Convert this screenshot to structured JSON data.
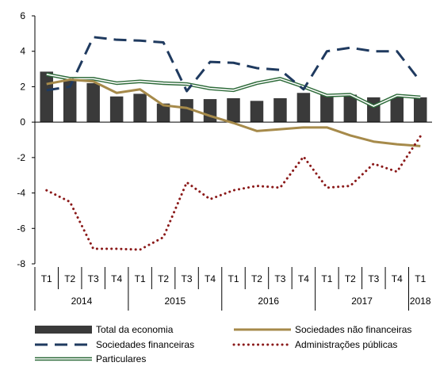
{
  "chart_data": {
    "type": "bar",
    "categories": [
      "T1",
      "T2",
      "T3",
      "T4",
      "T1",
      "T2",
      "T3",
      "T4",
      "T1",
      "T2",
      "T3",
      "T4",
      "T1",
      "T2",
      "T3",
      "T4",
      "T1"
    ],
    "year_groups": [
      {
        "label": "2014",
        "count": 4
      },
      {
        "label": "2015",
        "count": 4
      },
      {
        "label": "2016",
        "count": 4
      },
      {
        "label": "2017",
        "count": 4
      },
      {
        "label": "2018",
        "count": 1
      }
    ],
    "ylim": [
      -8,
      6
    ],
    "yticks": [
      -8,
      -6,
      -4,
      -2,
      0,
      2,
      4,
      6
    ],
    "grid": false,
    "legend_placement": "bottom",
    "series": [
      {
        "name": "Total da economia",
        "kind": "bar",
        "color": "#3a3a3a",
        "values": [
          2.85,
          2.55,
          2.2,
          1.45,
          1.6,
          1.05,
          1.3,
          1.3,
          1.35,
          1.2,
          1.35,
          1.65,
          1.55,
          1.55,
          1.4,
          1.45,
          1.4
        ]
      },
      {
        "name": "Sociedades não financeiras",
        "kind": "line",
        "style": "solid",
        "color": "#a68a4a",
        "values": [
          2.15,
          2.4,
          2.3,
          1.65,
          1.85,
          0.95,
          0.8,
          0.35,
          -0.05,
          -0.5,
          -0.4,
          -0.3,
          -0.3,
          -0.75,
          -1.1,
          -1.25,
          -1.35
        ]
      },
      {
        "name": "Sociedades financeiras",
        "kind": "line",
        "style": "dashed",
        "color": "#1f3a5f",
        "values": [
          1.8,
          2.0,
          4.8,
          4.65,
          4.6,
          4.5,
          1.75,
          3.4,
          3.35,
          3.05,
          2.95,
          1.85,
          4.0,
          4.2,
          4.0,
          4.0,
          2.3
        ]
      },
      {
        "name": "Administrações públicas",
        "kind": "line",
        "style": "dotted",
        "color": "#8b1a1a",
        "values": [
          -3.85,
          -4.5,
          -7.15,
          -7.15,
          -7.2,
          -6.5,
          -3.4,
          -4.35,
          -3.85,
          -3.6,
          -3.7,
          -1.95,
          -3.7,
          -3.6,
          -2.35,
          -2.8,
          -0.8
        ]
      },
      {
        "name": "Particulares",
        "kind": "line",
        "style": "double",
        "color": "#2e6b3a",
        "values": [
          2.7,
          2.45,
          2.45,
          2.2,
          2.3,
          2.2,
          2.15,
          1.9,
          1.8,
          2.2,
          2.45,
          2.0,
          1.5,
          1.55,
          0.9,
          1.5,
          1.4
        ]
      }
    ]
  }
}
